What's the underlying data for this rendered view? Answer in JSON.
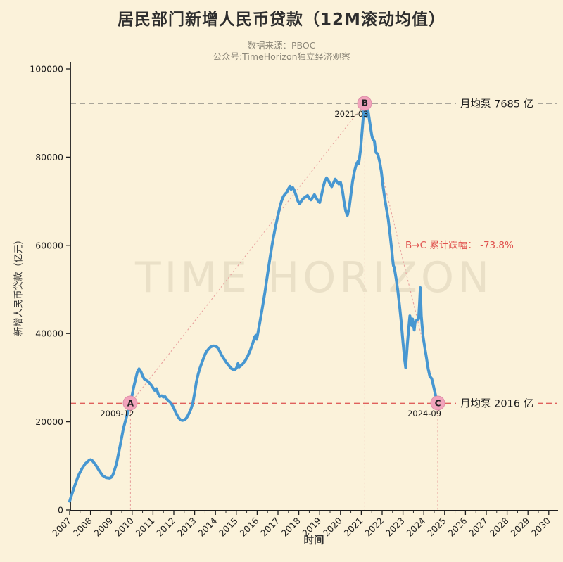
{
  "header": {
    "title": "居民部门新增人民币贷款（12M滚动均值）",
    "subtitle1": "数据来源：PBOC",
    "subtitle2": "公众号:TimeHorizon独立经济观察"
  },
  "watermark": "TIME HORIZON",
  "colors": {
    "background": "#fbf2da",
    "line_blue": "#4797d1",
    "axis": "#1d1d1d",
    "dashed_gray": "#5a5a5a",
    "dashed_red": "#e0605c",
    "dotted_pink": "#e8a29e",
    "marker_pink": "#f2a3bb",
    "annotation_red": "#e0524e"
  },
  "chart_data": {
    "type": "line",
    "title": "居民部门新增人民币贷款（12M滚动均值）",
    "xlabel": "时间",
    "ylabel": "新增人民币贷款（亿元）",
    "xlim": [
      2007,
      2030
    ],
    "ylim": [
      0,
      100000
    ],
    "x_ticks": [
      2007,
      2008,
      2009,
      2010,
      2011,
      2012,
      2013,
      2014,
      2015,
      2016,
      2017,
      2018,
      2019,
      2020,
      2021,
      2022,
      2023,
      2024,
      2025,
      2026,
      2027,
      2028,
      2029,
      2030
    ],
    "y_ticks": [
      0,
      20000,
      40000,
      60000,
      80000,
      100000
    ],
    "grid": false,
    "series": [
      {
        "name": "居民部门新增人民币贷款 12M滚动均值",
        "color": "#4797d1",
        "points": [
          [
            2007.0,
            2000
          ],
          [
            2007.08,
            3200
          ],
          [
            2007.25,
            5600
          ],
          [
            2007.42,
            7800
          ],
          [
            2007.58,
            9300
          ],
          [
            2007.75,
            10500
          ],
          [
            2007.92,
            11200
          ],
          [
            2008.0,
            11400
          ],
          [
            2008.08,
            11200
          ],
          [
            2008.25,
            10200
          ],
          [
            2008.42,
            8900
          ],
          [
            2008.58,
            7800
          ],
          [
            2008.75,
            7300
          ],
          [
            2008.92,
            7200
          ],
          [
            2009.0,
            7400
          ],
          [
            2009.08,
            8000
          ],
          [
            2009.25,
            10500
          ],
          [
            2009.42,
            14500
          ],
          [
            2009.58,
            18500
          ],
          [
            2009.75,
            21500
          ],
          [
            2009.92,
            24192
          ],
          [
            2010.08,
            28000
          ],
          [
            2010.25,
            31300
          ],
          [
            2010.33,
            32000
          ],
          [
            2010.42,
            31400
          ],
          [
            2010.5,
            30400
          ],
          [
            2010.58,
            29700
          ],
          [
            2010.75,
            29200
          ],
          [
            2010.92,
            28300
          ],
          [
            2011.0,
            27700
          ],
          [
            2011.08,
            27100
          ],
          [
            2011.17,
            27500
          ],
          [
            2011.25,
            26300
          ],
          [
            2011.33,
            25700
          ],
          [
            2011.42,
            25900
          ],
          [
            2011.5,
            25600
          ],
          [
            2011.58,
            25700
          ],
          [
            2011.67,
            25100
          ],
          [
            2011.83,
            24400
          ],
          [
            2011.92,
            23800
          ],
          [
            2012.0,
            23100
          ],
          [
            2012.08,
            22200
          ],
          [
            2012.17,
            21400
          ],
          [
            2012.25,
            20800
          ],
          [
            2012.33,
            20400
          ],
          [
            2012.42,
            20300
          ],
          [
            2012.5,
            20400
          ],
          [
            2012.58,
            20700
          ],
          [
            2012.67,
            21300
          ],
          [
            2012.75,
            22100
          ],
          [
            2012.83,
            23000
          ],
          [
            2012.92,
            24400
          ],
          [
            2013.0,
            26500
          ],
          [
            2013.08,
            29000
          ],
          [
            2013.17,
            30800
          ],
          [
            2013.25,
            32100
          ],
          [
            2013.33,
            33200
          ],
          [
            2013.42,
            34300
          ],
          [
            2013.5,
            35300
          ],
          [
            2013.58,
            36000
          ],
          [
            2013.67,
            36500
          ],
          [
            2013.75,
            36900
          ],
          [
            2013.83,
            37100
          ],
          [
            2013.92,
            37200
          ],
          [
            2014.0,
            37100
          ],
          [
            2014.08,
            36900
          ],
          [
            2014.17,
            36300
          ],
          [
            2014.25,
            35500
          ],
          [
            2014.33,
            34800
          ],
          [
            2014.42,
            34200
          ],
          [
            2014.5,
            33600
          ],
          [
            2014.58,
            33100
          ],
          [
            2014.67,
            32600
          ],
          [
            2014.75,
            32100
          ],
          [
            2014.83,
            31900
          ],
          [
            2014.92,
            31800
          ],
          [
            2015.0,
            32100
          ],
          [
            2015.08,
            33200
          ],
          [
            2015.13,
            32400
          ],
          [
            2015.21,
            32700
          ],
          [
            2015.29,
            33000
          ],
          [
            2015.42,
            33800
          ],
          [
            2015.54,
            34800
          ],
          [
            2015.67,
            36200
          ],
          [
            2015.79,
            37800
          ],
          [
            2015.88,
            39200
          ],
          [
            2015.94,
            39600
          ],
          [
            2015.98,
            38700
          ],
          [
            2016.04,
            40200
          ],
          [
            2016.13,
            42500
          ],
          [
            2016.25,
            45800
          ],
          [
            2016.38,
            49500
          ],
          [
            2016.5,
            53500
          ],
          [
            2016.63,
            57500
          ],
          [
            2016.75,
            61000
          ],
          [
            2016.88,
            64200
          ],
          [
            2017.0,
            66800
          ],
          [
            2017.08,
            68500
          ],
          [
            2017.17,
            70000
          ],
          [
            2017.25,
            71000
          ],
          [
            2017.33,
            71600
          ],
          [
            2017.42,
            72000
          ],
          [
            2017.5,
            72800
          ],
          [
            2017.58,
            73400
          ],
          [
            2017.63,
            72700
          ],
          [
            2017.71,
            73100
          ],
          [
            2017.79,
            72400
          ],
          [
            2017.88,
            71200
          ],
          [
            2017.96,
            70000
          ],
          [
            2018.04,
            69400
          ],
          [
            2018.13,
            70100
          ],
          [
            2018.21,
            70600
          ],
          [
            2018.33,
            71000
          ],
          [
            2018.42,
            71300
          ],
          [
            2018.5,
            70700
          ],
          [
            2018.58,
            70300
          ],
          [
            2018.67,
            70900
          ],
          [
            2018.75,
            71500
          ],
          [
            2018.83,
            70800
          ],
          [
            2018.92,
            70100
          ],
          [
            2019.0,
            69700
          ],
          [
            2019.08,
            71200
          ],
          [
            2019.17,
            73200
          ],
          [
            2019.25,
            74600
          ],
          [
            2019.33,
            75300
          ],
          [
            2019.42,
            74700
          ],
          [
            2019.5,
            73900
          ],
          [
            2019.58,
            73300
          ],
          [
            2019.67,
            74200
          ],
          [
            2019.75,
            75000
          ],
          [
            2019.83,
            74400
          ],
          [
            2019.92,
            73900
          ],
          [
            2020.0,
            74300
          ],
          [
            2020.08,
            72800
          ],
          [
            2020.17,
            70000
          ],
          [
            2020.25,
            67800
          ],
          [
            2020.33,
            66800
          ],
          [
            2020.42,
            68500
          ],
          [
            2020.5,
            71500
          ],
          [
            2020.58,
            74500
          ],
          [
            2020.67,
            76800
          ],
          [
            2020.75,
            78200
          ],
          [
            2020.83,
            79000
          ],
          [
            2020.88,
            78600
          ],
          [
            2020.96,
            81500
          ],
          [
            2021.04,
            86000
          ],
          [
            2021.1,
            89500
          ],
          [
            2021.17,
            92220
          ],
          [
            2021.21,
            91500
          ],
          [
            2021.25,
            89200
          ],
          [
            2021.29,
            90800
          ],
          [
            2021.33,
            90300
          ],
          [
            2021.42,
            87500
          ],
          [
            2021.5,
            85000
          ],
          [
            2021.54,
            84200
          ],
          [
            2021.63,
            83600
          ],
          [
            2021.67,
            82000
          ],
          [
            2021.71,
            81000
          ],
          [
            2021.79,
            80700
          ],
          [
            2021.88,
            79000
          ],
          [
            2021.96,
            76800
          ],
          [
            2022.04,
            73500
          ],
          [
            2022.13,
            70500
          ],
          [
            2022.21,
            68200
          ],
          [
            2022.29,
            66000
          ],
          [
            2022.38,
            62500
          ],
          [
            2022.46,
            59000
          ],
          [
            2022.5,
            57000
          ],
          [
            2022.54,
            55400
          ],
          [
            2022.58,
            55000
          ],
          [
            2022.67,
            52500
          ],
          [
            2022.75,
            49800
          ],
          [
            2022.83,
            46500
          ],
          [
            2022.92,
            42500
          ],
          [
            2023.0,
            38000
          ],
          [
            2023.08,
            34000
          ],
          [
            2023.13,
            32300
          ],
          [
            2023.21,
            37500
          ],
          [
            2023.29,
            42000
          ],
          [
            2023.33,
            44000
          ],
          [
            2023.42,
            41800
          ],
          [
            2023.46,
            43300
          ],
          [
            2023.5,
            42000
          ],
          [
            2023.54,
            40800
          ],
          [
            2023.58,
            42600
          ],
          [
            2023.67,
            43100
          ],
          [
            2023.75,
            43300
          ],
          [
            2023.79,
            46500
          ],
          [
            2023.83,
            50400
          ],
          [
            2023.88,
            44000
          ],
          [
            2023.96,
            39500
          ],
          [
            2024.04,
            37000
          ],
          [
            2024.13,
            34500
          ],
          [
            2024.21,
            32000
          ],
          [
            2024.29,
            30300
          ],
          [
            2024.38,
            29800
          ],
          [
            2024.46,
            28200
          ],
          [
            2024.54,
            26500
          ],
          [
            2024.63,
            24800
          ],
          [
            2024.67,
            24192
          ]
        ]
      }
    ],
    "annotations": {
      "points": [
        {
          "id": "A",
          "date": "2009-12",
          "x": 2009.92,
          "y": 24192
        },
        {
          "id": "B",
          "date": "2021-03",
          "x": 2021.17,
          "y": 92220
        },
        {
          "id": "C",
          "date": "2024-09",
          "x": 2024.67,
          "y": 24192
        }
      ],
      "hlines": [
        {
          "value": 92220,
          "label": "月均泵 7685 亿",
          "color": "#5a5a5a"
        },
        {
          "value": 24192,
          "label": "月均泵 2016 亿",
          "color": "#e0605c"
        }
      ],
      "connectors": [
        [
          "A",
          "B"
        ],
        [
          "B",
          "C"
        ]
      ],
      "drop_label": "B→C 累计跌幅： -73.8%"
    }
  }
}
